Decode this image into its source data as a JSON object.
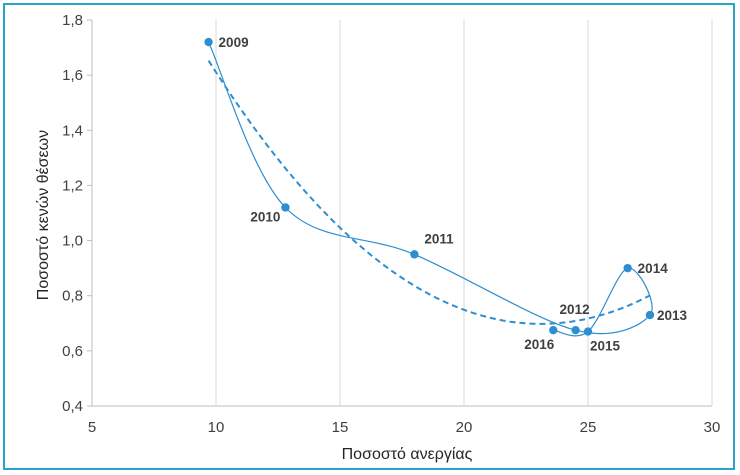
{
  "chart_data": {
    "type": "scatter",
    "xlabel": "Ποσοστό ανεργίας",
    "ylabel": "Ποσοστό κενών θέσεων",
    "xlim": [
      5,
      30
    ],
    "ylim": [
      0.4,
      1.8
    ],
    "xticks": [
      5,
      10,
      15,
      20,
      25,
      30
    ],
    "yticks": [
      0.4,
      0.6,
      0.8,
      1.0,
      1.2,
      1.4,
      1.6,
      1.8
    ],
    "ytick_labels": [
      "0,4",
      "0,6",
      "0,8",
      "1,0",
      "1,2",
      "1,4",
      "1,6",
      "1,8"
    ],
    "grid": "vertical",
    "color": "#2e8ecf",
    "connected_smooth_line": true,
    "trendline": {
      "style": "dashed",
      "type": "polynomial"
    },
    "points": [
      {
        "label": "2009",
        "x": 9.7,
        "y": 1.72
      },
      {
        "label": "2010",
        "x": 12.8,
        "y": 1.12
      },
      {
        "label": "2011",
        "x": 18.0,
        "y": 0.95
      },
      {
        "label": "2012",
        "x": 24.5,
        "y": 0.675
      },
      {
        "label": "2013",
        "x": 27.5,
        "y": 0.73
      },
      {
        "label": "2014",
        "x": 26.6,
        "y": 0.9
      },
      {
        "label": "2015",
        "x": 25.0,
        "y": 0.67
      },
      {
        "label": "2016",
        "x": 23.6,
        "y": 0.675
      }
    ]
  }
}
